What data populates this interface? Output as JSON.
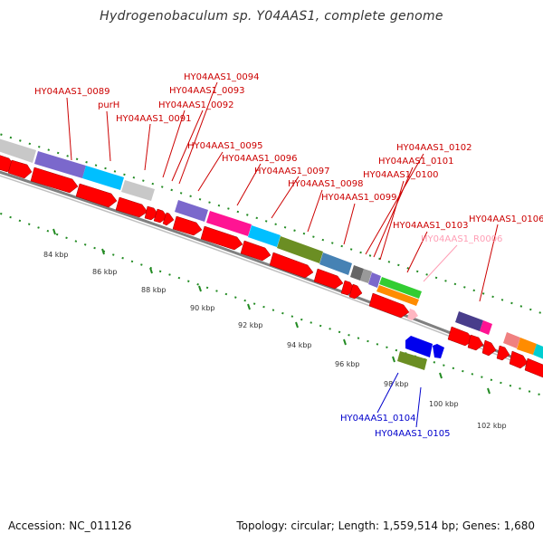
{
  "title": "Hydrogenobaculum sp. Y04AAS1, complete genome",
  "footer": {
    "accession": "Accession: NC_011126",
    "info": "Topology: circular; Length: 1,559,514 bp; Genes: 1,680"
  },
  "colors": {
    "forward_gene": "#ff0000",
    "annotated_gene": "#cc0000",
    "rna_gene": "#ff9eb5",
    "reverse_gene": "#0000cc",
    "tick": "#228b22",
    "backbone": "#808080"
  },
  "scale_labels": [
    "84 kbp",
    "86 kbp",
    "88 kbp",
    "90 kbp",
    "92 kbp",
    "94 kbp",
    "96 kbp",
    "98 kbp",
    "100 kbp",
    "102 kbp"
  ],
  "gene_labels": [
    {
      "text": "HY04AAS1_0089",
      "color": "#cc0000"
    },
    {
      "text": "purH",
      "color": "#cc0000"
    },
    {
      "text": "HY04AAS1_0091",
      "color": "#cc0000"
    },
    {
      "text": "HY04AAS1_0092",
      "color": "#cc0000"
    },
    {
      "text": "HY04AAS1_0093",
      "color": "#cc0000"
    },
    {
      "text": "HY04AAS1_0094",
      "color": "#cc0000"
    },
    {
      "text": "HY04AAS1_0095",
      "color": "#cc0000"
    },
    {
      "text": "HY04AAS1_0096",
      "color": "#cc0000"
    },
    {
      "text": "HY04AAS1_0097",
      "color": "#cc0000"
    },
    {
      "text": "HY04AAS1_0098",
      "color": "#cc0000"
    },
    {
      "text": "HY04AAS1_0099",
      "color": "#cc0000"
    },
    {
      "text": "HY04AAS1_0100",
      "color": "#cc0000"
    },
    {
      "text": "HY04AAS1_0101",
      "color": "#cc0000"
    },
    {
      "text": "HY04AAS1_0102",
      "color": "#cc0000"
    },
    {
      "text": "HY04AAS1_0103",
      "color": "#cc0000"
    },
    {
      "text": "HY04AAS1_R0006",
      "color": "#ff9eb5"
    },
    {
      "text": "HY04AAS1_0106",
      "color": "#cc0000"
    },
    {
      "text": "HY04AAS1_0104",
      "color": "#0000cc"
    },
    {
      "text": "HY04AAS1_0105",
      "color": "#0000cc"
    }
  ]
}
